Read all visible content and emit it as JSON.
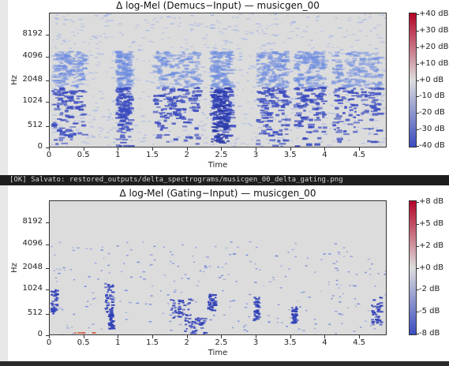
{
  "console_line": "[OK] Salvato: restored_outputs/delta_spectrograms/musicgen_00_delta_gating.png",
  "chart_data": [
    {
      "type": "heatmap",
      "title": "Δ log-Mel (Demucs−Input) — musicgen_00",
      "xlabel": "Time",
      "ylabel": "Hz",
      "x_ticks": [
        "0",
        "0.5",
        "1",
        "1.5",
        "2",
        "2.5",
        "3",
        "3.5",
        "4",
        "4.5"
      ],
      "y_ticks": [
        "0",
        "512",
        "1024",
        "2048",
        "4096",
        "8192"
      ],
      "xlim": [
        0,
        4.9
      ],
      "colorbar": {
        "ticks": [
          "+40 dB",
          "+30 dB",
          "+20 dB",
          "+10 dB",
          "+0 dB",
          "-10 dB",
          "-20 dB",
          "-30 dB",
          "-40 dB"
        ],
        "range": [
          -40,
          40
        ],
        "colors": [
          "#3b4cc0",
          "#dddddd",
          "#b40426"
        ]
      }
    },
    {
      "type": "heatmap",
      "title": "Δ log-Mel (Gating−Input) — musicgen_00",
      "xlabel": "Time",
      "ylabel": "Hz",
      "x_ticks": [
        "0",
        "0.5",
        "1",
        "1.5",
        "2",
        "2.5",
        "3",
        "3.5",
        "4",
        "4.5"
      ],
      "y_ticks": [
        "0",
        "512",
        "1024",
        "2048",
        "4096",
        "8192"
      ],
      "xlim": [
        0,
        4.9
      ],
      "colorbar": {
        "ticks": [
          "+8 dB",
          "+5 dB",
          "+2 dB",
          "+0 dB",
          "-2 dB",
          "-5 dB",
          "-8 dB"
        ],
        "range": [
          -10,
          10
        ],
        "colors": [
          "#3b4cc0",
          "#dddddd",
          "#b40426"
        ]
      }
    }
  ]
}
